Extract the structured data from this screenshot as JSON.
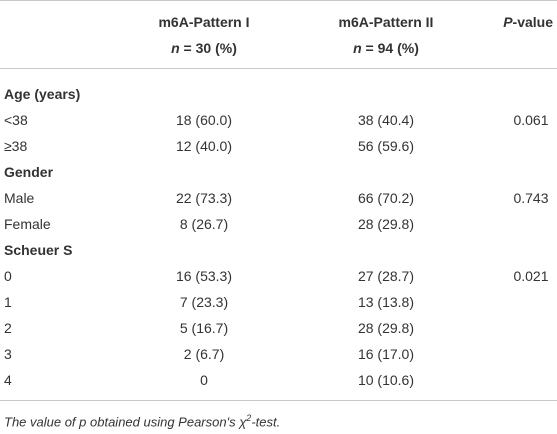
{
  "header": {
    "columns": [
      {
        "line1": "m6A-Pattern I",
        "n_symbol": "n",
        "n_rest": " = 30 (%)"
      },
      {
        "line1": "m6A-Pattern II",
        "n_symbol": "n",
        "n_rest": " = 94 (%)"
      }
    ],
    "p_column": {
      "symbol": "P",
      "rest": "-value"
    }
  },
  "table": {
    "rows": [
      {
        "section": "Age (years)"
      },
      {
        "label": "<38",
        "pattern1": "18 (60.0)",
        "pattern2": "38 (40.4)",
        "p": "0.061"
      },
      {
        "label": "≥38",
        "pattern1": "12 (40.0)",
        "pattern2": "56 (59.6)"
      },
      {
        "section": "Gender"
      },
      {
        "label": "Male",
        "pattern1": "22 (73.3)",
        "pattern2": "66 (70.2)",
        "p": "0.743"
      },
      {
        "label": "Female",
        "pattern1": "8 (26.7)",
        "pattern2": "28 (29.8)"
      },
      {
        "section": "Scheuer S"
      },
      {
        "label": "0",
        "pattern1": "16 (53.3)",
        "pattern2": "27 (28.7)",
        "p": "0.021"
      },
      {
        "label": "1",
        "pattern1": "7 (23.3)",
        "pattern2": "13 (13.8)"
      },
      {
        "label": "2",
        "pattern1": "5 (16.7)",
        "pattern2": "28 (29.8)"
      },
      {
        "label": "3",
        "pattern1": "2 (6.7)",
        "pattern2": "16 (17.0)"
      },
      {
        "label": "4",
        "pattern1": "0",
        "pattern2": "10 (10.6)"
      }
    ]
  },
  "footnote": {
    "text": "The value of p obtained using Pearson's χ",
    "superscript": "2",
    "tail": "-test."
  }
}
